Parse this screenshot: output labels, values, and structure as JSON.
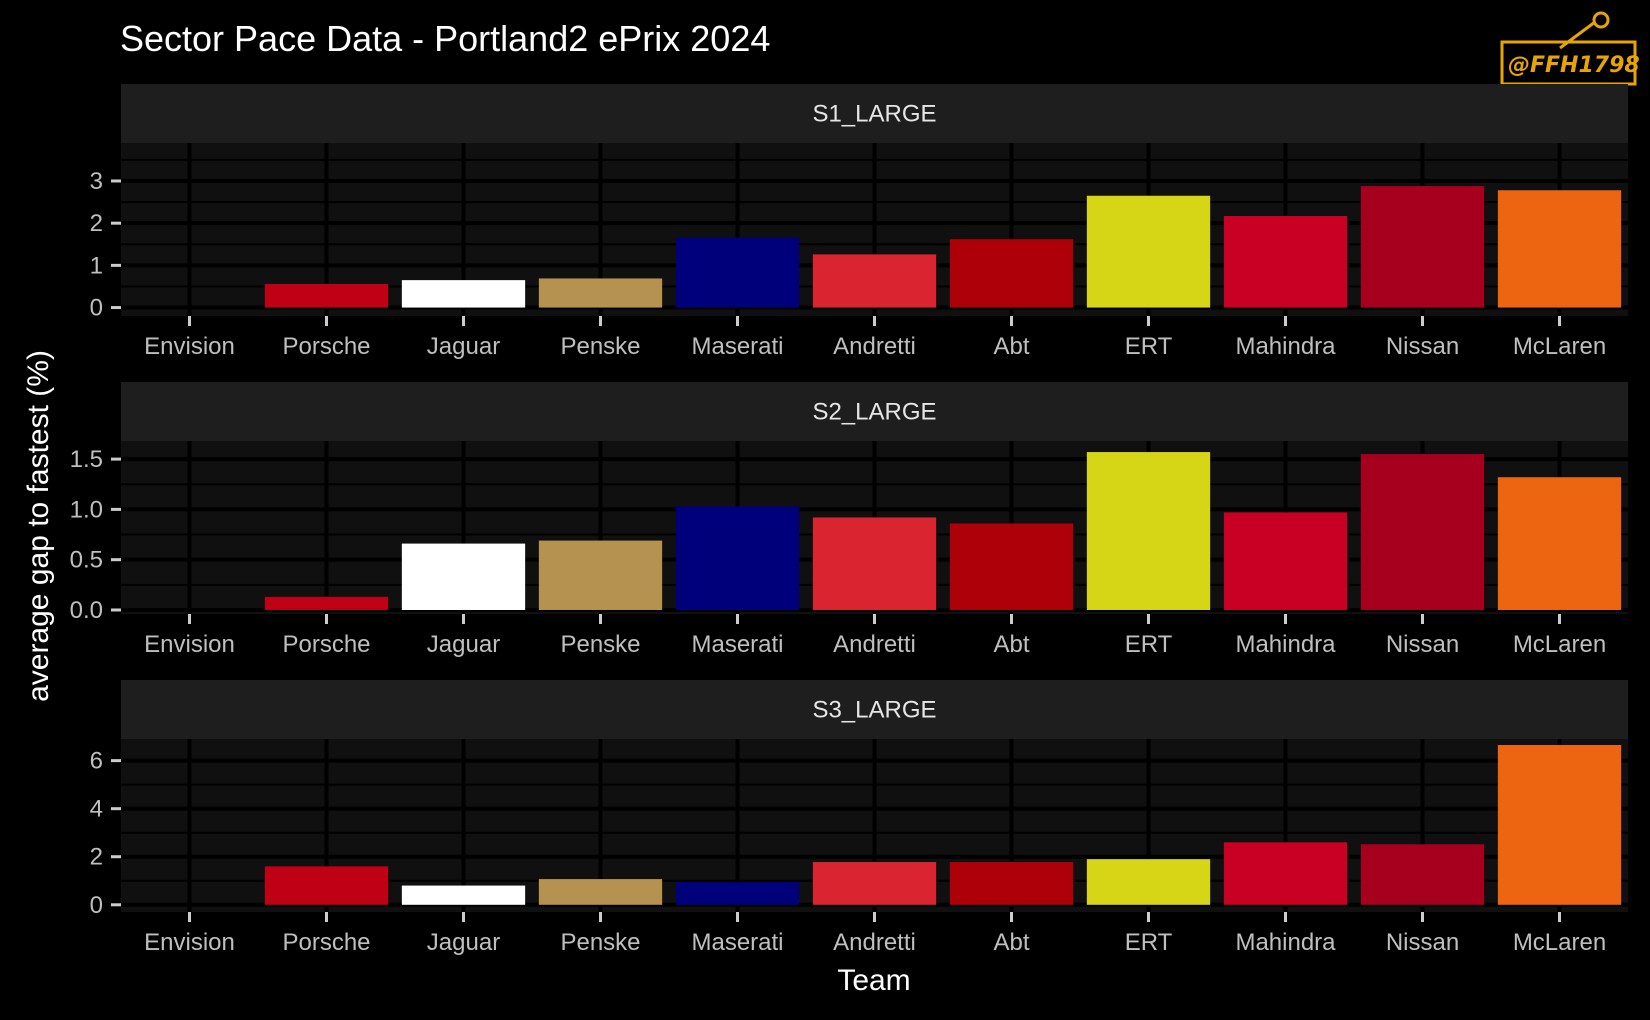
{
  "title": "Sector Pace Data - Portland2 ePrix 2024",
  "watermark": "@FFH1798",
  "chart_data": {
    "type": "bar",
    "xlabel": "Team",
    "ylabel": "average gap to fastest (%)",
    "categories": [
      "Envision",
      "Porsche",
      "Jaguar",
      "Penske",
      "Maserati",
      "Andretti",
      "Abt",
      "ERT",
      "Mahindra",
      "Nissan",
      "McLaren"
    ],
    "colors": [
      "#00BE26",
      "#C00015",
      "#FFFFFF",
      "#B5924F",
      "#00007A",
      "#DA2530",
      "#AD0008",
      "#D6D616",
      "#C90023",
      "#A7001F",
      "#EE6511"
    ],
    "panel_background": "#101010",
    "strip_background": "#1e1e1e",
    "grid": true,
    "panels": [
      {
        "name": "S1_LARGE",
        "ylim": [
          -0.2,
          3.9
        ],
        "ticks": [
          0,
          1,
          2,
          3
        ],
        "tick_labels": [
          "0",
          "1",
          "2",
          "3"
        ],
        "values": [
          0.0,
          0.56,
          0.65,
          0.69,
          1.66,
          1.26,
          1.62,
          2.65,
          2.17,
          2.88,
          2.78
        ]
      },
      {
        "name": "S2_LARGE",
        "ylim": [
          -0.04,
          1.68
        ],
        "ticks": [
          0,
          0.5,
          1.0,
          1.5
        ],
        "tick_labels": [
          "0.0",
          "0.5",
          "1.0",
          "1.5"
        ],
        "values": [
          0.0,
          0.13,
          0.66,
          0.69,
          1.03,
          0.92,
          0.86,
          1.57,
          0.97,
          1.55,
          1.32
        ]
      },
      {
        "name": "S3_LARGE",
        "ylim": [
          -0.3,
          6.9
        ],
        "ticks": [
          0,
          2,
          4,
          6
        ],
        "tick_labels": [
          "0",
          "2",
          "4",
          "6"
        ],
        "values": [
          0.0,
          1.6,
          0.8,
          1.07,
          0.95,
          1.78,
          1.78,
          1.9,
          2.6,
          2.52,
          6.65
        ]
      }
    ]
  }
}
